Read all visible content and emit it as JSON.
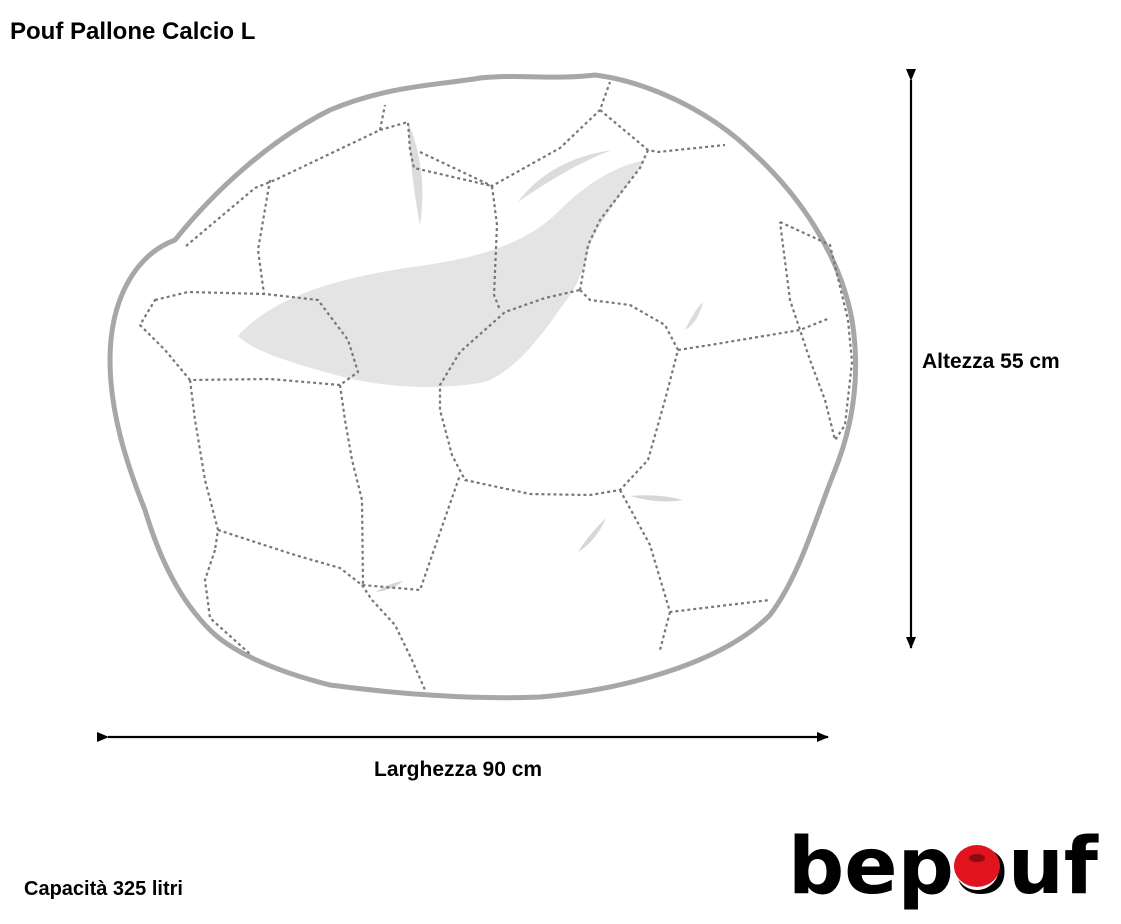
{
  "title": "Pouf Pallone Calcio L",
  "dimensions": {
    "height_label": "Altezza 55 cm",
    "width_label": "Larghezza 90 cm"
  },
  "capacity_label": "Capacità 325 litri",
  "brand": {
    "logo_text": "bepouf",
    "accent_color": "#e0141e",
    "text_color": "#000000"
  },
  "colors": {
    "outline": "#a7a7a7",
    "seams": "#777777",
    "shadow": "#e3e3e3",
    "arrows": "#000000"
  }
}
